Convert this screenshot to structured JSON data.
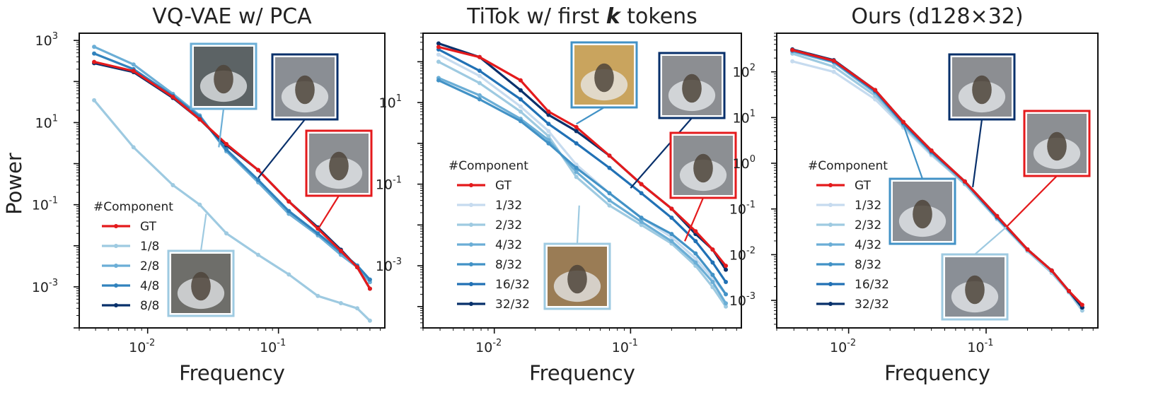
{
  "figure": {
    "shared_ylabel": "Power",
    "photo_alt": "thumbnail"
  },
  "chart_data": [
    {
      "type": "line",
      "title": "VQ-VAE w/ PCA",
      "title_parts": [
        {
          "t": "VQ-VAE w/ PCA",
          "it": false
        }
      ],
      "xlabel": "Frequency",
      "ylabel": "Power",
      "xscale": "log",
      "yscale": "log",
      "xlim": [
        0.003,
        0.65
      ],
      "ylim": [
        0.0001,
        1500
      ],
      "xticks": [
        {
          "base": "10",
          "exp": "-2",
          "v": 0.01
        },
        {
          "base": "10",
          "exp": "-1",
          "v": 0.1
        }
      ],
      "yticks": [
        {
          "base": "10",
          "exp": "3",
          "v": 1000
        },
        {
          "base": "10",
          "exp": "1",
          "v": 10
        },
        {
          "base": "10",
          "exp": "-1",
          "v": 0.1
        },
        {
          "base": "10",
          "exp": "-3",
          "v": 0.001
        }
      ],
      "legend": {
        "title": "#Component",
        "position": "lower-left"
      },
      "series": [
        {
          "name": "1/8",
          "color": "#9ecae1",
          "x": [
            0.0039,
            0.0078,
            0.0156,
            0.025,
            0.04,
            0.07,
            0.12,
            0.2,
            0.3,
            0.4,
            0.5
          ],
          "y": [
            35,
            2.5,
            0.3,
            0.1,
            0.02,
            0.006,
            0.002,
            0.0006,
            0.0004,
            0.0003,
            0.00015
          ]
        },
        {
          "name": "2/8",
          "color": "#6baed6",
          "x": [
            0.0039,
            0.0078,
            0.0156,
            0.025,
            0.04,
            0.07,
            0.12,
            0.2,
            0.3,
            0.4,
            0.5
          ],
          "y": [
            700,
            260,
            50,
            15,
            2.0,
            0.35,
            0.06,
            0.018,
            0.006,
            0.003,
            0.0013
          ]
        },
        {
          "name": "4/8",
          "color": "#3182bd",
          "x": [
            0.0039,
            0.0078,
            0.0156,
            0.025,
            0.04,
            0.07,
            0.12,
            0.2,
            0.3,
            0.4,
            0.5
          ],
          "y": [
            480,
            200,
            45,
            14,
            2.2,
            0.4,
            0.07,
            0.02,
            0.007,
            0.0033,
            0.0015
          ]
        },
        {
          "name": "8/8",
          "color": "#08306b",
          "x": [
            0.0039,
            0.0078,
            0.0156,
            0.025,
            0.04,
            0.07,
            0.12,
            0.2,
            0.3,
            0.4,
            0.5
          ],
          "y": [
            280,
            170,
            40,
            12,
            2.8,
            0.7,
            0.12,
            0.028,
            0.008,
            0.003,
            0.0009
          ]
        },
        {
          "name": "GT",
          "color": "#e41a1c",
          "x": [
            0.0039,
            0.0078,
            0.0156,
            0.025,
            0.04,
            0.07,
            0.12,
            0.2,
            0.3,
            0.4,
            0.5
          ],
          "y": [
            300,
            180,
            42,
            12,
            3.0,
            0.7,
            0.12,
            0.026,
            0.0075,
            0.003,
            0.0009
          ]
        }
      ],
      "insets": [
        {
          "name": "inset-1-8",
          "series": "1/8",
          "border": "#9ecae1",
          "bg": "#6e6e6a",
          "target": [
            0.028,
            0.06
          ]
        },
        {
          "name": "inset-2-8",
          "series": "2/8",
          "border": "#6baed6",
          "bg": "#5c6365",
          "target": [
            0.035,
            2.5
          ]
        },
        {
          "name": "inset-8-8",
          "series": "8/8",
          "border": "#08306b",
          "bg": "#8a8e94",
          "target": [
            0.07,
            0.45
          ]
        },
        {
          "name": "inset-gt",
          "series": "GT",
          "border": "#e41a1c",
          "bg": "#8c8f93",
          "target": [
            0.2,
            0.025
          ]
        }
      ]
    },
    {
      "type": "line",
      "title": "TiTok w/ first k tokens",
      "title_parts": [
        {
          "t": "TiTok w/ first ",
          "it": false
        },
        {
          "t": "k",
          "it": true
        },
        {
          "t": " tokens",
          "it": false
        }
      ],
      "xlabel": "Frequency",
      "ylabel": "",
      "xscale": "log",
      "yscale": "log",
      "xlim": [
        0.003,
        0.65
      ],
      "ylim": [
        3e-05,
        500
      ],
      "xticks": [
        {
          "base": "10",
          "exp": "-2",
          "v": 0.01
        },
        {
          "base": "10",
          "exp": "-1",
          "v": 0.1
        }
      ],
      "yticks": [
        {
          "base": "10",
          "exp": "1",
          "v": 10
        },
        {
          "base": "10",
          "exp": "-1",
          "v": 0.1
        },
        {
          "base": "10",
          "exp": "-3",
          "v": 0.001
        }
      ],
      "legend": {
        "title": "#Component",
        "position": "left"
      },
      "series": [
        {
          "name": "1/32",
          "color": "#c6dbef",
          "x": [
            0.0039,
            0.0078,
            0.0156,
            0.025,
            0.04,
            0.07,
            0.12,
            0.2,
            0.3,
            0.4,
            0.5
          ],
          "y": [
            150,
            45,
            8,
            2,
            0.3,
            0.06,
            0.015,
            0.005,
            0.0015,
            0.0005,
            0.0002
          ]
        },
        {
          "name": "2/32",
          "color": "#9ecae1",
          "x": [
            0.0039,
            0.0078,
            0.0156,
            0.025,
            0.04,
            0.07,
            0.12,
            0.2,
            0.3,
            0.4,
            0.5
          ],
          "y": [
            100,
            30,
            6,
            1.5,
            0.15,
            0.03,
            0.01,
            0.0035,
            0.001,
            0.0003,
            0.0001
          ]
        },
        {
          "name": "4/32",
          "color": "#6baed6",
          "x": [
            0.0039,
            0.0078,
            0.0156,
            0.025,
            0.04,
            0.07,
            0.12,
            0.2,
            0.3,
            0.4,
            0.5
          ],
          "y": [
            40,
            15,
            4,
            1.2,
            0.2,
            0.04,
            0.012,
            0.004,
            0.0012,
            0.0004,
            0.00012
          ]
        },
        {
          "name": "8/32",
          "color": "#4292c6",
          "x": [
            0.0039,
            0.0078,
            0.0156,
            0.025,
            0.04,
            0.07,
            0.12,
            0.2,
            0.3,
            0.4,
            0.5
          ],
          "y": [
            35,
            12,
            3.5,
            1.0,
            0.25,
            0.06,
            0.015,
            0.006,
            0.002,
            0.0006,
            0.0002
          ]
        },
        {
          "name": "16/32",
          "color": "#2171b5",
          "x": [
            0.0039,
            0.0078,
            0.0156,
            0.025,
            0.04,
            0.07,
            0.12,
            0.2,
            0.3,
            0.4,
            0.5
          ],
          "y": [
            200,
            60,
            12,
            3,
            1.0,
            0.25,
            0.06,
            0.015,
            0.004,
            0.0012,
            0.0004
          ]
        },
        {
          "name": "32/32",
          "color": "#08306b",
          "x": [
            0.0039,
            0.0078,
            0.0156,
            0.025,
            0.04,
            0.07,
            0.12,
            0.2,
            0.3,
            0.4,
            0.5
          ],
          "y": [
            280,
            130,
            20,
            5,
            2,
            0.5,
            0.1,
            0.025,
            0.006,
            0.0025,
            0.0008
          ]
        },
        {
          "name": "GT",
          "color": "#e41a1c",
          "x": [
            0.0039,
            0.0078,
            0.0156,
            0.025,
            0.04,
            0.07,
            0.12,
            0.2,
            0.3,
            0.4,
            0.5
          ],
          "y": [
            230,
            130,
            35,
            6,
            2.5,
            0.5,
            0.1,
            0.025,
            0.007,
            0.0025,
            0.001
          ]
        }
      ],
      "insets": [
        {
          "name": "inset-1-32",
          "series": "1/32",
          "border": "#9ecae1",
          "bg": "#9a7c55",
          "target": [
            0.042,
            0.03
          ]
        },
        {
          "name": "inset-4-32",
          "series": "4/32",
          "border": "#4292c6",
          "bg": "#c9a45e",
          "target": [
            0.04,
            3
          ]
        },
        {
          "name": "inset-32-32",
          "series": "32/32",
          "border": "#08306b",
          "bg": "#8c8e92",
          "target": [
            0.1,
            0.08
          ]
        },
        {
          "name": "inset-gt",
          "series": "GT",
          "border": "#e41a1c",
          "bg": "#8c8f93",
          "target": [
            0.25,
            0.004
          ]
        }
      ]
    },
    {
      "type": "line",
      "title": "Ours (d128×32)",
      "title_parts": [
        {
          "t": "Ours (d128×32)",
          "it": false
        }
      ],
      "xlabel": "Frequency",
      "ylabel": "",
      "xscale": "log",
      "yscale": "log",
      "xlim": [
        0.003,
        0.65
      ],
      "ylim": [
        0.00025,
        700
      ],
      "xticks": [
        {
          "base": "10",
          "exp": "-2",
          "v": 0.01
        },
        {
          "base": "10",
          "exp": "-1",
          "v": 0.1
        }
      ],
      "yticks": [
        {
          "base": "10",
          "exp": "2",
          "v": 100
        },
        {
          "base": "10",
          "exp": "1",
          "v": 10
        },
        {
          "base": "10",
          "exp": "0",
          "v": 1
        },
        {
          "base": "10",
          "exp": "-1",
          "v": 0.1
        },
        {
          "base": "10",
          "exp": "-2",
          "v": 0.01
        },
        {
          "base": "10",
          "exp": "-3",
          "v": 0.001
        }
      ],
      "legend": {
        "title": "#Component",
        "position": "left"
      },
      "series": [
        {
          "name": "1/32",
          "color": "#c6dbef",
          "x": [
            0.0039,
            0.0078,
            0.0156,
            0.025,
            0.04,
            0.07,
            0.12,
            0.2,
            0.3,
            0.4,
            0.5
          ],
          "y": [
            170,
            100,
            25,
            6,
            1.5,
            0.35,
            0.06,
            0.012,
            0.004,
            0.0015,
            0.0006
          ]
        },
        {
          "name": "2/32",
          "color": "#9ecae1",
          "x": [
            0.0039,
            0.0078,
            0.0156,
            0.025,
            0.04,
            0.07,
            0.12,
            0.2,
            0.3,
            0.4,
            0.5
          ],
          "y": [
            250,
            130,
            30,
            6.5,
            1.6,
            0.35,
            0.06,
            0.012,
            0.004,
            0.0015,
            0.0006
          ]
        },
        {
          "name": "4/32",
          "color": "#6baed6",
          "x": [
            0.0039,
            0.0078,
            0.0156,
            0.025,
            0.04,
            0.07,
            0.12,
            0.2,
            0.3,
            0.4,
            0.5
          ],
          "y": [
            280,
            160,
            35,
            7,
            1.7,
            0.38,
            0.065,
            0.013,
            0.0045,
            0.0016,
            0.0007
          ]
        },
        {
          "name": "8/32",
          "color": "#4292c6",
          "x": [
            0.0039,
            0.0078,
            0.0156,
            0.025,
            0.04,
            0.07,
            0.12,
            0.2,
            0.3,
            0.4,
            0.5
          ],
          "y": [
            290,
            170,
            38,
            7.5,
            1.8,
            0.4,
            0.065,
            0.013,
            0.0045,
            0.0016,
            0.0007
          ]
        },
        {
          "name": "16/32",
          "color": "#2171b5",
          "x": [
            0.0039,
            0.0078,
            0.0156,
            0.025,
            0.04,
            0.07,
            0.12,
            0.2,
            0.3,
            0.4,
            0.5
          ],
          "y": [
            300,
            170,
            38,
            7.5,
            1.8,
            0.4,
            0.065,
            0.013,
            0.0045,
            0.0016,
            0.0007
          ]
        },
        {
          "name": "32/32",
          "color": "#08306b",
          "x": [
            0.0039,
            0.0078,
            0.0156,
            0.025,
            0.04,
            0.07,
            0.12,
            0.2,
            0.3,
            0.4,
            0.5
          ],
          "y": [
            310,
            180,
            40,
            8,
            1.9,
            0.4,
            0.07,
            0.013,
            0.0045,
            0.0016,
            0.0007
          ]
        },
        {
          "name": "GT",
          "color": "#e41a1c",
          "x": [
            0.0039,
            0.0078,
            0.0156,
            0.025,
            0.04,
            0.07,
            0.12,
            0.2,
            0.3,
            0.4,
            0.5
          ],
          "y": [
            300,
            175,
            40,
            8,
            1.9,
            0.4,
            0.07,
            0.013,
            0.0045,
            0.0016,
            0.0008
          ]
        }
      ],
      "insets": [
        {
          "name": "inset-1-32",
          "series": "1/32",
          "border": "#9ecae1",
          "bg": "#8a8f96",
          "target": [
            0.14,
            0.04
          ]
        },
        {
          "name": "inset-8-32",
          "series": "8/32",
          "border": "#4292c6",
          "bg": "#8c9096",
          "target": [
            0.025,
            7
          ]
        },
        {
          "name": "inset-32-32",
          "series": "32/32",
          "border": "#08306b",
          "bg": "#8c8e92",
          "target": [
            0.08,
            0.3
          ]
        },
        {
          "name": "inset-gt",
          "series": "GT",
          "border": "#e41a1c",
          "bg": "#8c8f93",
          "target": [
            0.14,
            0.04
          ]
        }
      ]
    }
  ]
}
